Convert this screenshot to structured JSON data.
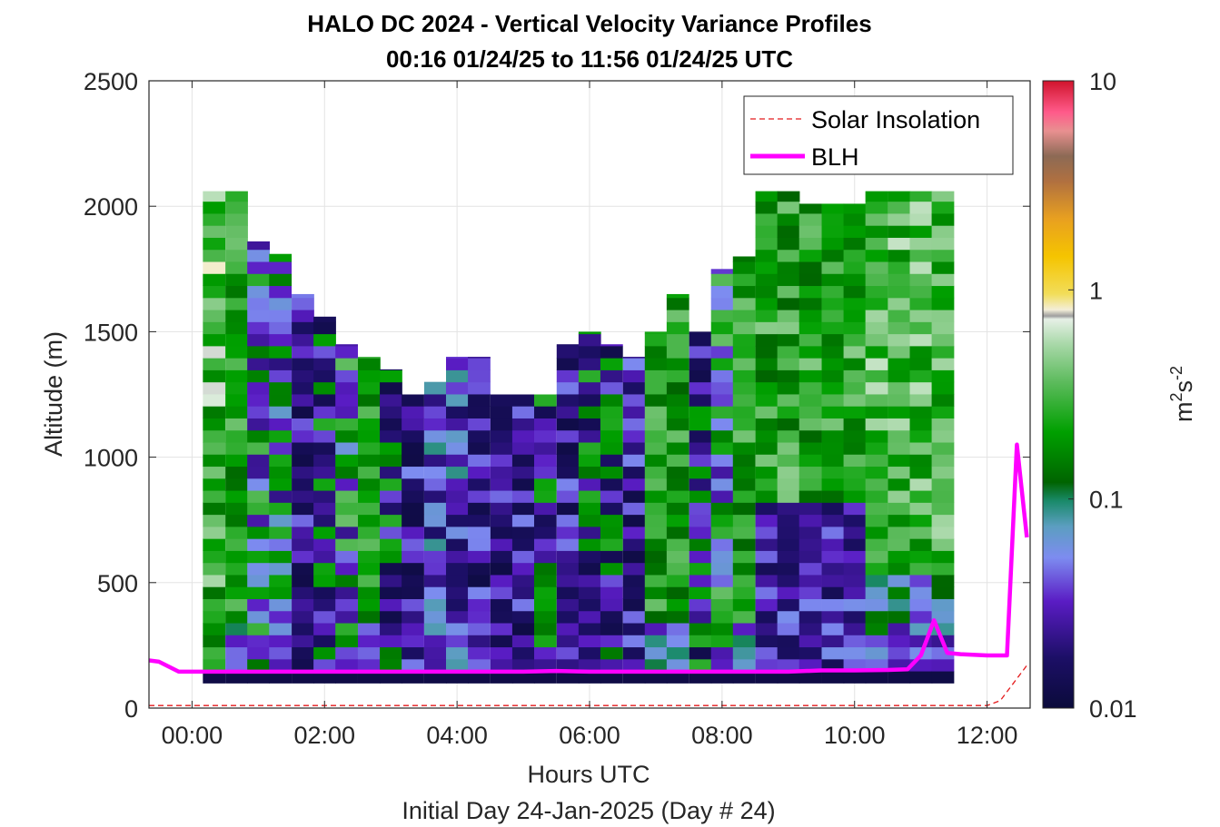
{
  "chart_data": {
    "type": "heatmap",
    "title_line1": "HALO DC 2024 - Vertical Velocity Variance Profiles",
    "title_line2": "00:16 01/24/25 to 11:56 01/24/25  UTC",
    "xlabel": "Hours UTC",
    "ylabel": "Altitude (m)",
    "footer": "Initial Day 24-Jan-2025 (Day # 24)",
    "xlim": [
      -0.65,
      12.65
    ],
    "ylim": [
      0,
      2500
    ],
    "x_ticks": [
      {
        "value": 0,
        "label": "00:00"
      },
      {
        "value": 2,
        "label": "02:00"
      },
      {
        "value": 4,
        "label": "04:00"
      },
      {
        "value": 6,
        "label": "06:00"
      },
      {
        "value": 8,
        "label": "08:00"
      },
      {
        "value": 10,
        "label": "10:00"
      },
      {
        "value": 12,
        "label": "12:00"
      }
    ],
    "y_ticks": [
      {
        "value": 0,
        "label": "0"
      },
      {
        "value": 500,
        "label": "500"
      },
      {
        "value": 1000,
        "label": "1000"
      },
      {
        "value": 1500,
        "label": "1500"
      },
      {
        "value": 2000,
        "label": "2000"
      },
      {
        "value": 2500,
        "label": "2500"
      }
    ],
    "grid": true,
    "colorbar": {
      "scale": "log",
      "label_base": "m",
      "label_exp1": "2",
      "label_mid": "s",
      "label_exp2": "-2",
      "ticks": [
        {
          "value": 0.01,
          "label": "0.01"
        },
        {
          "value": 0.1,
          "label": "0.1"
        },
        {
          "value": 1,
          "label": "1"
        },
        {
          "value": 10,
          "label": "10"
        }
      ],
      "colormap": [
        [
          0.0,
          "#0b0b3b"
        ],
        [
          0.08,
          "#1c0f66"
        ],
        [
          0.17,
          "#5a1cc4"
        ],
        [
          0.24,
          "#7d8cf0"
        ],
        [
          0.29,
          "#5b9ec0"
        ],
        [
          0.33,
          "#1a8a6a"
        ],
        [
          0.36,
          "#006400"
        ],
        [
          0.44,
          "#00a000"
        ],
        [
          0.52,
          "#5dbb5d"
        ],
        [
          0.58,
          "#a8d8a8"
        ],
        [
          0.62,
          "#e6f0e6"
        ],
        [
          0.625,
          "#9e9e9e"
        ],
        [
          0.635,
          "#f3eed8"
        ],
        [
          0.66,
          "#f2dd5a"
        ],
        [
          0.72,
          "#f5c400"
        ],
        [
          0.78,
          "#e8a020"
        ],
        [
          0.84,
          "#b07040"
        ],
        [
          0.88,
          "#8c6a55"
        ],
        [
          0.92,
          "#e89090"
        ],
        [
          0.95,
          "#ff5a8a"
        ],
        [
          1.0,
          "#d0142c"
        ]
      ]
    },
    "heatmap": {
      "bin_width_hours": 0.333,
      "bin_height_m": 48,
      "rows_bottom_altitude": 100,
      "columns": [
        {
          "x": 0.33,
          "top": 2060,
          "profile": "low-mid"
        },
        {
          "x": 0.67,
          "top": 2060,
          "profile": "mixed-green"
        },
        {
          "x": 1.0,
          "top": 1860,
          "profile": "mixed"
        },
        {
          "x": 1.33,
          "top": 1810,
          "profile": "purple-green"
        },
        {
          "x": 1.67,
          "top": 1650,
          "profile": "low"
        },
        {
          "x": 2.0,
          "top": 1560,
          "profile": "low-green"
        },
        {
          "x": 2.33,
          "top": 1450,
          "profile": "mixed"
        },
        {
          "x": 2.67,
          "top": 1400,
          "profile": "mixed-green"
        },
        {
          "x": 3.0,
          "top": 1350,
          "profile": "low-green"
        },
        {
          "x": 3.33,
          "top": 1250,
          "profile": "low"
        },
        {
          "x": 3.67,
          "top": 1300,
          "profile": "low-blue"
        },
        {
          "x": 4.0,
          "top": 1400,
          "profile": "low-blue"
        },
        {
          "x": 4.33,
          "top": 1400,
          "profile": "low"
        },
        {
          "x": 4.67,
          "top": 1250,
          "profile": "low"
        },
        {
          "x": 5.0,
          "top": 1250,
          "profile": "low"
        },
        {
          "x": 5.33,
          "top": 1250,
          "profile": "low-green"
        },
        {
          "x": 5.67,
          "top": 1450,
          "profile": "low"
        },
        {
          "x": 6.0,
          "top": 1500,
          "profile": "low-green"
        },
        {
          "x": 6.33,
          "top": 1450,
          "profile": "low-green"
        },
        {
          "x": 6.67,
          "top": 1400,
          "profile": "low"
        },
        {
          "x": 7.0,
          "top": 1500,
          "profile": "mixed-green"
        },
        {
          "x": 7.33,
          "top": 1650,
          "profile": "mixed-green"
        },
        {
          "x": 7.67,
          "top": 1500,
          "profile": "low-green"
        },
        {
          "x": 8.0,
          "top": 1750,
          "profile": "mixed"
        },
        {
          "x": 8.33,
          "top": 1800,
          "profile": "mixed-green"
        },
        {
          "x": 8.67,
          "top": 2060,
          "profile": "green-high"
        },
        {
          "x": 9.0,
          "top": 2060,
          "profile": "green-high"
        },
        {
          "x": 9.33,
          "top": 2010,
          "profile": "green-high"
        },
        {
          "x": 9.67,
          "top": 2010,
          "profile": "green-high"
        },
        {
          "x": 10.0,
          "top": 2010,
          "profile": "green-high"
        },
        {
          "x": 10.33,
          "top": 2060,
          "profile": "green-light"
        },
        {
          "x": 10.67,
          "top": 2060,
          "profile": "green-light"
        },
        {
          "x": 11.0,
          "top": 2060,
          "profile": "green-light"
        },
        {
          "x": 11.33,
          "top": 2060,
          "profile": "green-light"
        }
      ]
    },
    "series": [
      {
        "name": "Solar Insolation",
        "style": "dashed",
        "color": "#e41a1c",
        "x": [
          -0.65,
          11.8,
          12.0,
          12.2,
          12.6
        ],
        "y": [
          10,
          10,
          10,
          30,
          170
        ]
      },
      {
        "name": "BLH",
        "style": "solid",
        "color": "#ff00ff",
        "x": [
          -0.65,
          -0.5,
          -0.2,
          0.1,
          0.5,
          1.0,
          2.0,
          3.0,
          4.0,
          5.0,
          5.5,
          6.0,
          7.0,
          8.0,
          9.0,
          9.5,
          10.0,
          10.5,
          10.8,
          11.0,
          11.2,
          11.4,
          11.6,
          12.0,
          12.3,
          12.45,
          12.6
        ],
        "y": [
          190,
          185,
          145,
          145,
          145,
          145,
          145,
          145,
          145,
          145,
          148,
          145,
          145,
          145,
          145,
          150,
          150,
          152,
          155,
          210,
          350,
          220,
          215,
          210,
          210,
          1050,
          680
        ]
      }
    ],
    "legend": {
      "placement": "top-right",
      "entries": [
        "Solar Insolation",
        "BLH"
      ]
    }
  }
}
